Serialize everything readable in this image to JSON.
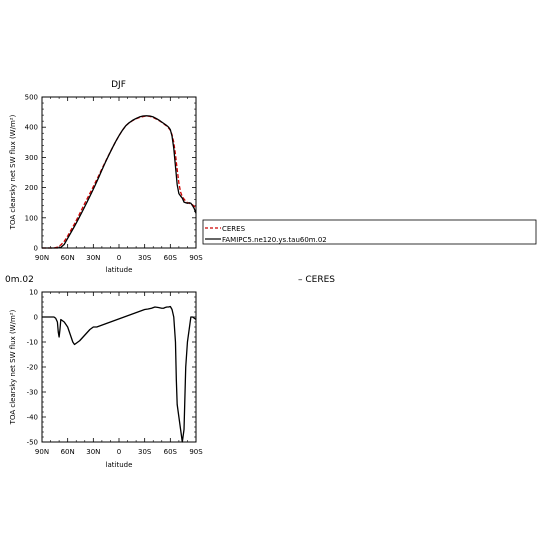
{
  "chart_data": [
    {
      "type": "line",
      "title": "DJF",
      "xlabel": "latitude",
      "ylabel": "TOA clearsky net SW flux (W/m²)",
      "xlim": [
        90,
        -90
      ],
      "ylim": [
        0,
        500
      ],
      "xticks": [
        90,
        60,
        30,
        0,
        -30,
        -60,
        -90
      ],
      "xticklabels": [
        "90N",
        "60N",
        "30N",
        "0",
        "30S",
        "60S",
        "90S"
      ],
      "yticks": [
        0,
        100,
        200,
        300,
        400,
        500
      ],
      "yticklabels": [
        "0",
        "100",
        "200",
        "300",
        "400",
        "500"
      ],
      "legend": {
        "entries": [
          "CERES",
          "FAMIPC5.ne120.ys.tau60m.02"
        ],
        "placement": "right of plot"
      },
      "series": [
        {
          "name": "CERES",
          "color": "#cc0000",
          "dash": "dashed",
          "x": [
            90,
            84,
            80,
            76,
            72,
            68,
            64,
            60,
            56,
            52,
            48,
            44,
            40,
            36,
            32,
            28,
            24,
            20,
            16,
            12,
            8,
            4,
            0,
            -4,
            -8,
            -12,
            -16,
            -20,
            -24,
            -28,
            -32,
            -36,
            -40,
            -44,
            -48,
            -52,
            -56,
            -58,
            -60,
            -62,
            -64,
            -66,
            -68,
            -70,
            -72,
            -74,
            -76,
            -78,
            -80,
            -82,
            -84,
            -86,
            -88,
            -90
          ],
          "values": [
            0,
            0,
            0,
            0,
            3,
            10,
            22,
            40,
            60,
            80,
            102,
            125,
            148,
            170,
            192,
            215,
            238,
            262,
            285,
            308,
            330,
            352,
            372,
            390,
            405,
            415,
            422,
            428,
            432,
            435,
            437,
            436,
            432,
            426,
            420,
            412,
            403,
            397,
            390,
            375,
            350,
            310,
            260,
            215,
            185,
            170,
            162,
            155,
            150,
            148,
            146,
            143,
            138,
            133
          ]
        },
        {
          "name": "FAMIPC5.ne120.ys.tau60m.02",
          "color": "#000000",
          "dash": "solid",
          "x": [
            90,
            84,
            80,
            76,
            72,
            68,
            64,
            60,
            56,
            52,
            48,
            44,
            40,
            36,
            32,
            28,
            24,
            20,
            16,
            12,
            8,
            4,
            0,
            -4,
            -8,
            -12,
            -16,
            -20,
            -24,
            -28,
            -32,
            -36,
            -40,
            -44,
            -48,
            -52,
            -56,
            -58,
            -60,
            -62,
            -64,
            -66,
            -68,
            -70,
            -72,
            -74,
            -76,
            -78,
            -80,
            -82,
            -84,
            -86,
            -88,
            -90
          ],
          "values": [
            0,
            0,
            0,
            0,
            0,
            2,
            12,
            32,
            52,
            72,
            93,
            115,
            137,
            160,
            183,
            207,
            232,
            258,
            283,
            307,
            330,
            352,
            372,
            390,
            405,
            415,
            423,
            429,
            434,
            437,
            438,
            437,
            434,
            428,
            421,
            413,
            405,
            400,
            392,
            370,
            330,
            270,
            210,
            180,
            172,
            165,
            152,
            150,
            148,
            150,
            148,
            140,
            130,
            115
          ]
        }
      ]
    },
    {
      "type": "line",
      "title": "",
      "xlabel": "latitude",
      "ylabel": "TOA clearsky net SW flux (W/m²)",
      "xlim": [
        90,
        -90
      ],
      "ylim": [
        -50,
        10
      ],
      "xticks": [
        90,
        60,
        30,
        0,
        -30,
        -60,
        -90
      ],
      "xticklabels": [
        "90N",
        "60N",
        "30N",
        "0",
        "30S",
        "60S",
        "90S"
      ],
      "yticks": [
        -50,
        -40,
        -30,
        -20,
        -10,
        0,
        10
      ],
      "yticklabels": [
        "-50",
        "-40",
        "-30",
        "-20",
        "-10",
        "0",
        "10"
      ],
      "header_left": "0m.02",
      "header_right": "– CERES",
      "series": [
        {
          "name": "",
          "color": "#000000",
          "dash": "solid",
          "x": [
            90,
            80,
            76,
            74,
            72,
            71,
            70,
            69,
            68,
            66,
            64,
            62,
            60,
            58,
            56,
            54,
            52,
            50,
            46,
            42,
            38,
            34,
            30,
            26,
            22,
            18,
            14,
            10,
            6,
            2,
            -2,
            -6,
            -10,
            -14,
            -18,
            -22,
            -26,
            -30,
            -34,
            -38,
            -42,
            -46,
            -50,
            -52,
            -54,
            -56,
            -58,
            -60,
            -62,
            -64,
            -66,
            -67,
            -68,
            -70,
            -72,
            -74,
            -76,
            -78,
            -80,
            -82,
            -84,
            -86,
            -88,
            -90
          ],
          "values": [
            0,
            0,
            0,
            -0.5,
            -2,
            -6,
            -8,
            -5,
            -1,
            -1.5,
            -2,
            -3,
            -4,
            -6,
            -8,
            -10,
            -11,
            -10.5,
            -9.5,
            -8,
            -6.5,
            -5,
            -4,
            -4,
            -3.5,
            -3,
            -2.5,
            -2,
            -1.5,
            -1,
            -0.5,
            0,
            0.5,
            1,
            1.5,
            2,
            2.5,
            3,
            3.2,
            3.5,
            4,
            3.8,
            3.5,
            3.5,
            3.8,
            4,
            4,
            4.2,
            3,
            0,
            -10,
            -25,
            -35,
            -40,
            -45,
            -50,
            -45,
            -20,
            -10,
            -5,
            0,
            0,
            -0.5,
            -1
          ]
        }
      ]
    }
  ]
}
